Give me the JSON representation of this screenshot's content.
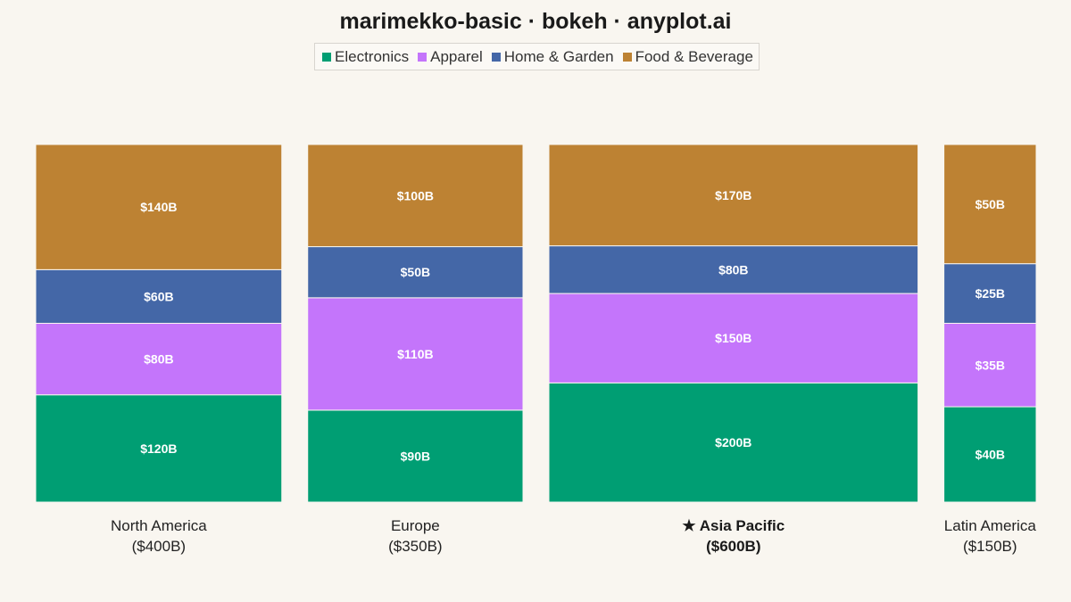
{
  "title": "marimekko-basic · bokeh · anyplot.ai",
  "chart_data": {
    "type": "bar",
    "subtype": "marimekko",
    "title": "marimekko-basic · bokeh · anyplot.ai",
    "legend_position": "top-center",
    "grid": false,
    "categories": [
      {
        "name": "North America",
        "total_label": "($400B)",
        "total": 400,
        "highlight": false
      },
      {
        "name": "Europe",
        "total_label": "($350B)",
        "total": 350,
        "highlight": false
      },
      {
        "name": "★ Asia Pacific",
        "total_label": "($600B)",
        "total": 600,
        "highlight": true
      },
      {
        "name": "Latin America",
        "total_label": "($150B)",
        "total": 150,
        "highlight": false
      }
    ],
    "series": [
      {
        "name": "Electronics",
        "color": "#009E73",
        "values": [
          120,
          90,
          200,
          40
        ],
        "labels": [
          "$120B",
          "$90B",
          "$200B",
          "$40B"
        ]
      },
      {
        "name": "Apparel",
        "color": "#C475FB",
        "values": [
          80,
          110,
          150,
          35
        ],
        "labels": [
          "$80B",
          "$110B",
          "$150B",
          "$35B"
        ]
      },
      {
        "name": "Home & Garden",
        "color": "#4467A7",
        "values": [
          60,
          50,
          80,
          25
        ],
        "labels": [
          "$60B",
          "$50B",
          "$80B",
          "$25B"
        ]
      },
      {
        "name": "Food & Beverage",
        "color": "#BD8233",
        "values": [
          140,
          100,
          170,
          50
        ],
        "labels": [
          "$140B",
          "$100B",
          "$170B",
          "$50B"
        ]
      }
    ]
  }
}
